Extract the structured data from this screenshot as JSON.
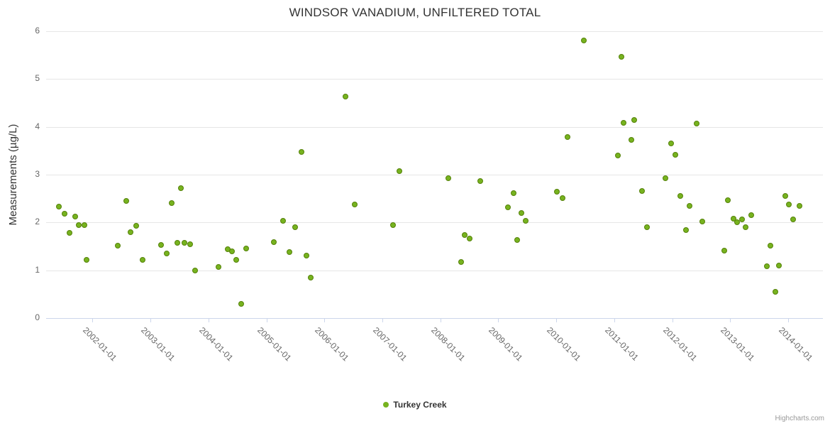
{
  "chart_data": {
    "type": "scatter",
    "title": "WINDSOR VANADIUM, UNFILTERED TOTAL",
    "ylabel": "Measurements (µg/L)",
    "xlabel": "",
    "ylim": [
      0,
      6
    ],
    "xlim": [
      2001.2,
      2014.6
    ],
    "grid": "horizontal",
    "legend_position": "bottom-center",
    "y_ticks": [
      0,
      1,
      2,
      3,
      4,
      5,
      6
    ],
    "x_ticks": [
      {
        "value": 2002,
        "label": "2002-01-01"
      },
      {
        "value": 2003,
        "label": "2003-01-01"
      },
      {
        "value": 2004,
        "label": "2004-01-01"
      },
      {
        "value": 2005,
        "label": "2005-01-01"
      },
      {
        "value": 2006,
        "label": "2006-01-01"
      },
      {
        "value": 2007,
        "label": "2007-01-01"
      },
      {
        "value": 2008,
        "label": "2008-01-01"
      },
      {
        "value": 2009,
        "label": "2009-01-01"
      },
      {
        "value": 2010,
        "label": "2010-01-01"
      },
      {
        "value": 2011,
        "label": "2011-01-01"
      },
      {
        "value": 2012,
        "label": "2012-01-01"
      },
      {
        "value": 2013,
        "label": "2013-01-01"
      },
      {
        "value": 2014,
        "label": "2014-01-01"
      }
    ],
    "series": [
      {
        "name": "Turkey Creek",
        "color": "#77b31f",
        "marker_edge": "#55810a",
        "points": [
          [
            2001.42,
            2.33
          ],
          [
            2001.52,
            2.18
          ],
          [
            2001.6,
            1.78
          ],
          [
            2001.7,
            2.12
          ],
          [
            2001.76,
            1.95
          ],
          [
            2001.86,
            1.94
          ],
          [
            2001.9,
            1.22
          ],
          [
            2002.43,
            1.51
          ],
          [
            2002.58,
            2.45
          ],
          [
            2002.66,
            1.8
          ],
          [
            2002.76,
            1.93
          ],
          [
            2002.87,
            1.22
          ],
          [
            2003.18,
            1.53
          ],
          [
            2003.28,
            1.35
          ],
          [
            2003.36,
            2.41
          ],
          [
            2003.46,
            1.57
          ],
          [
            2003.53,
            2.72
          ],
          [
            2003.59,
            1.57
          ],
          [
            2003.69,
            1.55
          ],
          [
            2003.77,
            1.0
          ],
          [
            2004.17,
            1.07
          ],
          [
            2004.33,
            1.44
          ],
          [
            2004.41,
            1.4
          ],
          [
            2004.48,
            1.22
          ],
          [
            2004.57,
            0.29
          ],
          [
            2004.65,
            1.45
          ],
          [
            2005.13,
            1.59
          ],
          [
            2005.29,
            2.04
          ],
          [
            2005.4,
            1.38
          ],
          [
            2005.49,
            1.9
          ],
          [
            2005.61,
            3.48
          ],
          [
            2005.69,
            1.31
          ],
          [
            2005.77,
            0.85
          ],
          [
            2006.36,
            4.63
          ],
          [
            2006.52,
            2.38
          ],
          [
            2007.18,
            1.95
          ],
          [
            2007.3,
            3.07
          ],
          [
            2008.14,
            2.93
          ],
          [
            2008.36,
            1.18
          ],
          [
            2008.42,
            1.74
          ],
          [
            2008.51,
            1.66
          ],
          [
            2008.69,
            2.87
          ],
          [
            2009.17,
            2.31
          ],
          [
            2009.27,
            2.62
          ],
          [
            2009.33,
            1.64
          ],
          [
            2009.4,
            2.2
          ],
          [
            2009.47,
            2.04
          ],
          [
            2010.01,
            2.65
          ],
          [
            2010.11,
            2.51
          ],
          [
            2010.19,
            3.78
          ],
          [
            2010.47,
            5.8
          ],
          [
            2011.06,
            3.4
          ],
          [
            2011.13,
            5.47
          ],
          [
            2011.16,
            4.09
          ],
          [
            2011.3,
            3.73
          ],
          [
            2011.34,
            4.15
          ],
          [
            2011.48,
            2.66
          ],
          [
            2011.57,
            1.9
          ],
          [
            2011.88,
            2.93
          ],
          [
            2011.98,
            3.65
          ],
          [
            2012.06,
            3.42
          ],
          [
            2012.14,
            2.55
          ],
          [
            2012.24,
            1.84
          ],
          [
            2012.3,
            2.35
          ],
          [
            2012.42,
            4.07
          ],
          [
            2012.52,
            2.02
          ],
          [
            2012.9,
            1.41
          ],
          [
            2012.96,
            2.46
          ],
          [
            2013.06,
            2.08
          ],
          [
            2013.12,
            2.01
          ],
          [
            2013.2,
            2.07
          ],
          [
            2013.27,
            1.9
          ],
          [
            2013.36,
            2.15
          ],
          [
            2013.63,
            1.08
          ],
          [
            2013.69,
            1.51
          ],
          [
            2013.78,
            0.55
          ],
          [
            2013.84,
            1.1
          ],
          [
            2013.95,
            2.55
          ],
          [
            2014.01,
            2.37
          ],
          [
            2014.08,
            2.07
          ],
          [
            2014.2,
            2.35
          ]
        ]
      }
    ]
  },
  "credits": {
    "label": "Highcharts.com"
  }
}
